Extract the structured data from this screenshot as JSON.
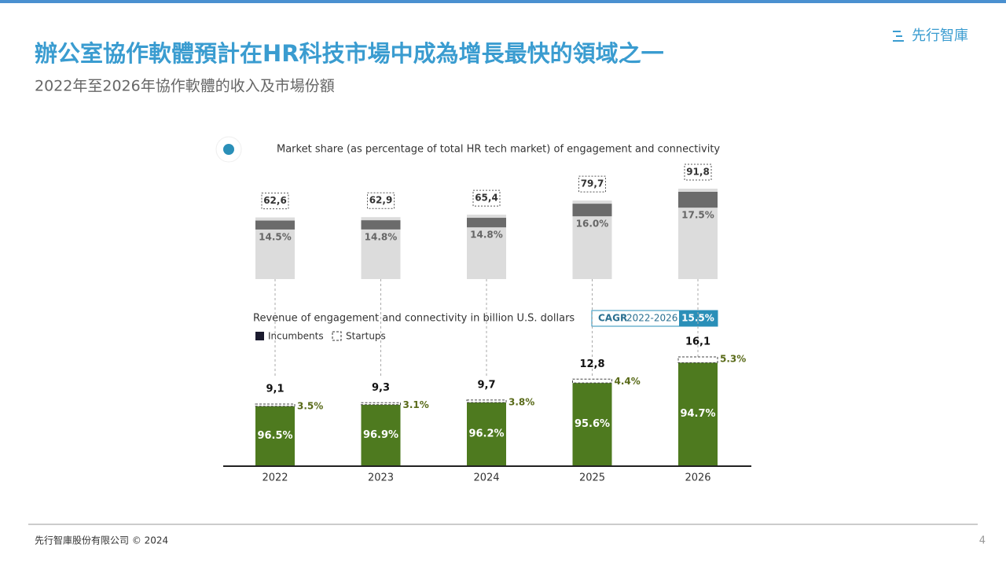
{
  "header": {
    "title": "辦公室協作軟體預計在HR科技市場中成為增長最快的領域之一",
    "subtitle": "2022年至2026年協作軟體的收入及市場份額",
    "logo": "先行智庫"
  },
  "chart_data": [
    {
      "type": "share_bar",
      "title": "Market share (as percentage of total HR tech market) of engagement and connectivity",
      "values": [
        62.6,
        62.9,
        65.4,
        79.7,
        91.8
      ],
      "value_labels": [
        "62,6",
        "62,9",
        "65,4",
        "79,7",
        "91,8"
      ],
      "color": "#dcdcdc",
      "share": {
        "color": "#6b6b6b",
        "values": [
          14.5,
          14.8,
          14.8,
          16.0,
          17.5
        ],
        "value_labels": [
          "14.5%",
          "14.8%",
          "14.8%",
          "16.0%",
          "17.5%"
        ]
      }
    },
    {
      "type": "stacked_bar",
      "title": "Revenue of engagement and connectivity in billion U.S. dollars",
      "categories": [
        "2022",
        "2023",
        "2024",
        "2025",
        "2026"
      ],
      "values": [
        9.1,
        9.3,
        9.7,
        12.8,
        16.1
      ],
      "value_labels": [
        "9,1",
        "9,3",
        "9,7",
        "12,8",
        "16,1"
      ],
      "series": [
        {
          "name": "Incumbents",
          "color": "#4e7a1f",
          "values": [
            96.5,
            96.9,
            96.2,
            95.6,
            94.7
          ],
          "value_labels": [
            "96.5%",
            "96.9%",
            "96.2%",
            "95.6%",
            "94.7%"
          ]
        },
        {
          "name": "Startups",
          "color": "#5a6b1a",
          "values": [
            3.5,
            3.1,
            3.8,
            4.4,
            5.3
          ],
          "value_labels": [
            "3.5%",
            "3.1%",
            "3.8%",
            "4.4%",
            "5.3%"
          ]
        }
      ],
      "cagr": {
        "label": "CAGR",
        "period": "2022-2026",
        "value": 15.5,
        "value_label": "15.5%"
      }
    }
  ],
  "footer": {
    "copyright": "先行智庫股份有限公司 © 2024",
    "page": 4
  }
}
